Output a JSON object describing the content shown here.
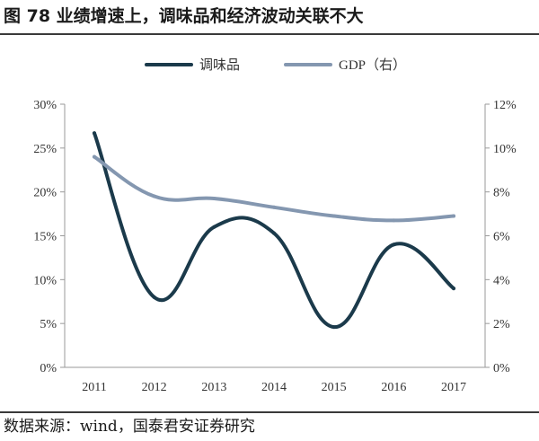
{
  "title": "图 78 业绩增速上，调味品和经济波动关联不大",
  "source": "数据来源：wind，国泰君安证券研究",
  "chart_data": {
    "type": "line",
    "categories": [
      "2011",
      "2012",
      "2013",
      "2014",
      "2015",
      "2016",
      "2017"
    ],
    "series": [
      {
        "name": "调味品",
        "axis": "left",
        "color": "#1b3a4b",
        "values": [
          26.7,
          8.0,
          16.0,
          15.3,
          4.6,
          14.0,
          9.0
        ]
      },
      {
        "name": "GDP（右）",
        "axis": "right",
        "color": "#8497b0",
        "values": [
          9.6,
          7.8,
          7.7,
          7.3,
          6.9,
          6.7,
          6.9
        ]
      }
    ],
    "y_left": {
      "ylim": [
        0,
        30
      ],
      "ticks": [
        "0%",
        "5%",
        "10%",
        "15%",
        "20%",
        "25%",
        "30%"
      ]
    },
    "y_right": {
      "ylim": [
        0,
        12
      ],
      "ticks": [
        "0%",
        "2%",
        "4%",
        "6%",
        "8%",
        "10%",
        "12%"
      ]
    },
    "legend_position": "top",
    "grid": false,
    "smooth": true
  }
}
